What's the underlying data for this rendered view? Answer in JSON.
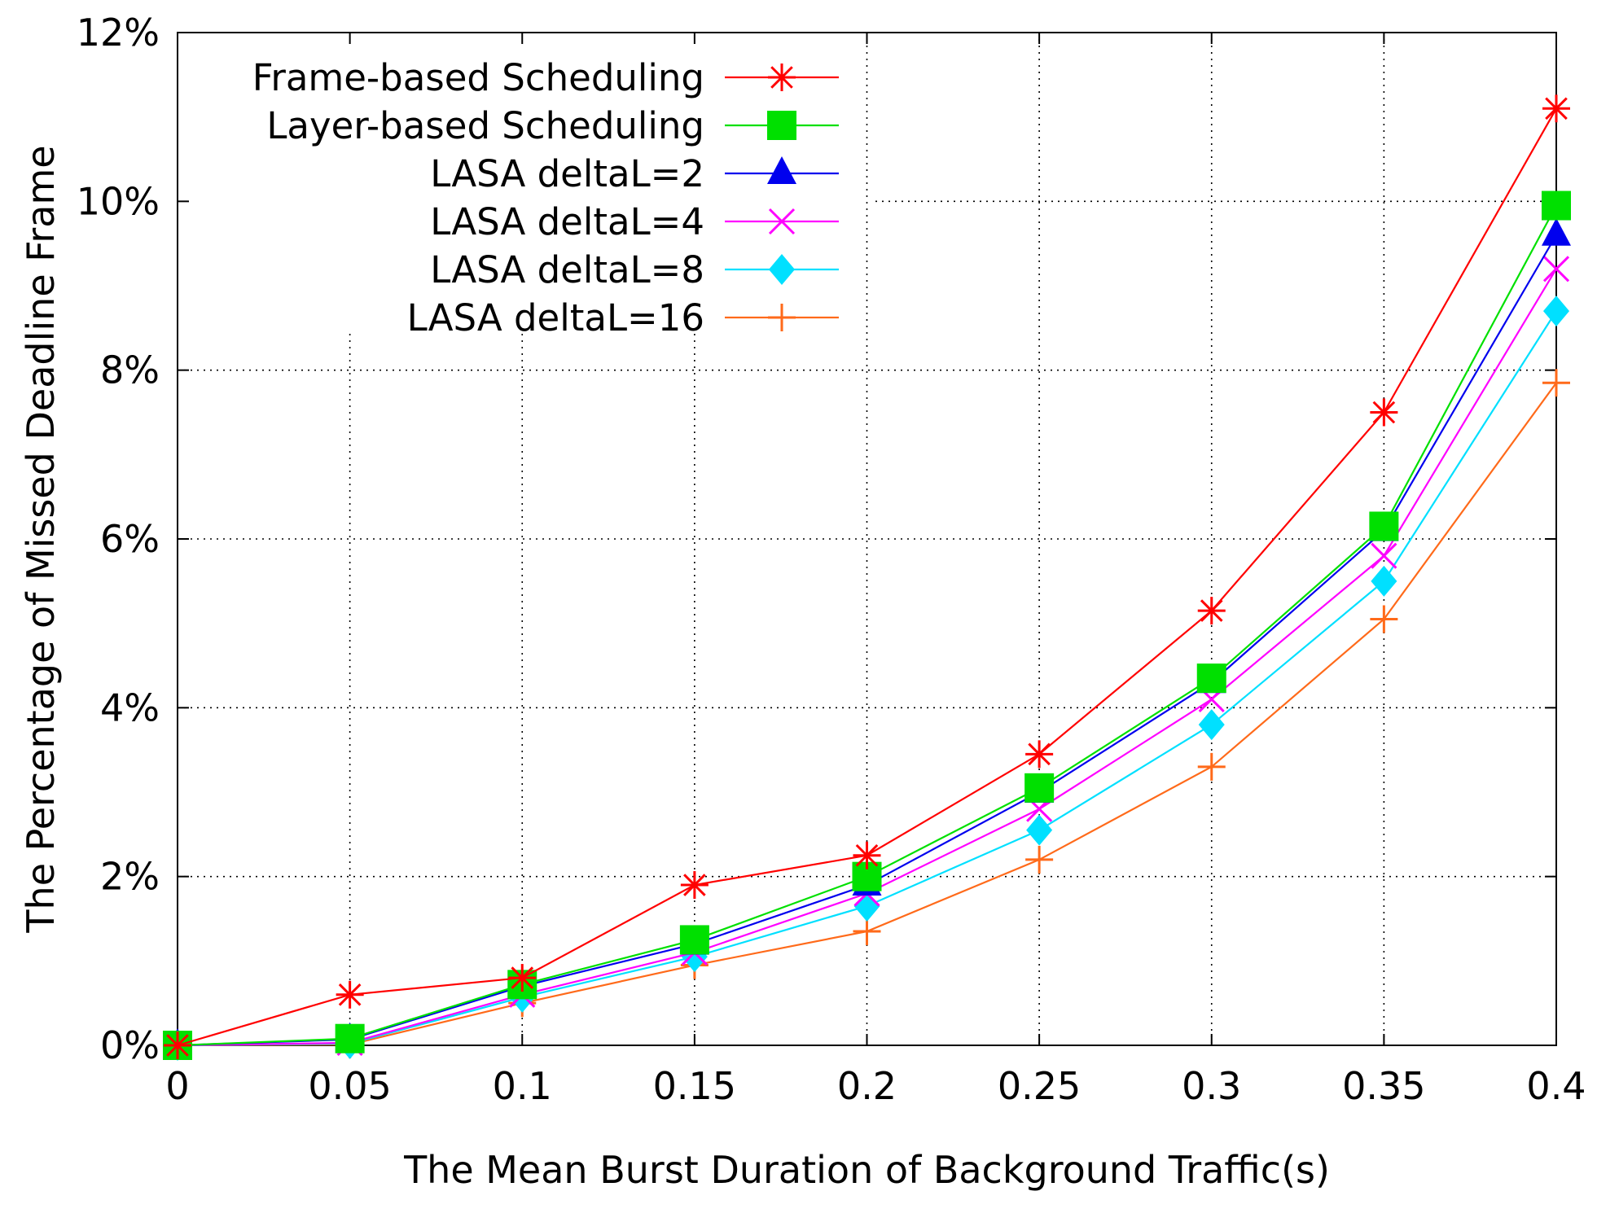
{
  "chart_data": {
    "type": "line",
    "title": "",
    "xlabel": "The Mean Burst Duration of Background Traffic(s)",
    "ylabel": "The Percentage of Missed Deadline Frame",
    "x": [
      0,
      0.05,
      0.1,
      0.15,
      0.2,
      0.25,
      0.3,
      0.35,
      0.4
    ],
    "xticks": [
      "0",
      "0.05",
      "0.1",
      "0.15",
      "0.2",
      "0.25",
      "0.3",
      "0.35",
      "0.4"
    ],
    "yticks": [
      "0%",
      "2%",
      "4%",
      "6%",
      "8%",
      "10%",
      "12%"
    ],
    "xlim": [
      0,
      0.4
    ],
    "ylim": [
      0,
      12
    ],
    "grid": true,
    "legend_position": "top-left",
    "series": [
      {
        "name": "Frame-based Scheduling",
        "color": "#ff0000",
        "marker": "asterisk",
        "values": [
          0,
          0.6,
          0.8,
          1.9,
          2.25,
          3.45,
          5.15,
          7.5,
          11.1
        ]
      },
      {
        "name": "Layer-based Scheduling",
        "color": "#00e000",
        "marker": "square",
        "values": [
          0,
          0.08,
          0.72,
          1.25,
          2.0,
          3.05,
          4.35,
          6.15,
          9.95
        ]
      },
      {
        "name": "LASA deltaL=2",
        "color": "#0000ee",
        "marker": "triangle",
        "values": [
          0,
          0.07,
          0.7,
          1.2,
          1.9,
          3.0,
          4.3,
          6.1,
          9.6
        ]
      },
      {
        "name": "LASA deltaL=4",
        "color": "#ff00ff",
        "marker": "x",
        "values": [
          0,
          0.03,
          0.6,
          1.1,
          1.8,
          2.8,
          4.1,
          5.8,
          9.2
        ]
      },
      {
        "name": "LASA deltaL=8",
        "color": "#00e0ff",
        "marker": "diamond",
        "values": [
          0,
          0.02,
          0.57,
          1.05,
          1.65,
          2.55,
          3.8,
          5.5,
          8.7
        ]
      },
      {
        "name": "LASA deltaL=16",
        "color": "#ff6a1a",
        "marker": "plus",
        "values": [
          0,
          0.01,
          0.5,
          0.95,
          1.35,
          2.2,
          3.3,
          5.05,
          7.85
        ]
      }
    ]
  }
}
